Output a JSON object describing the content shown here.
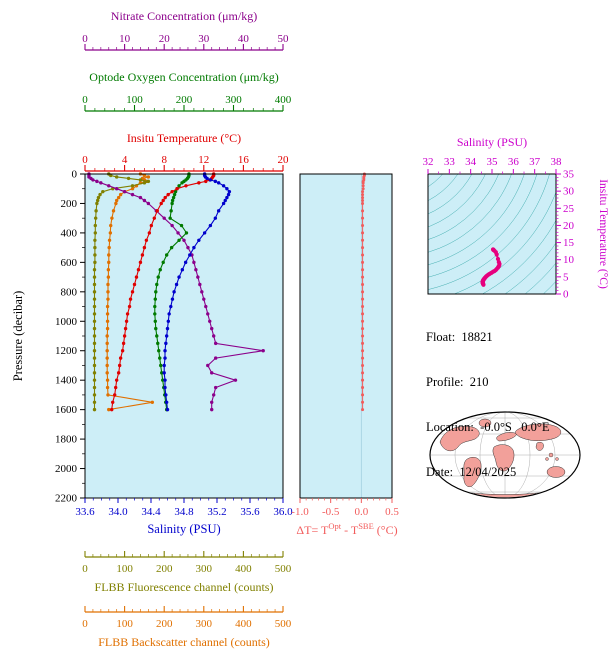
{
  "figure": {
    "bg": "#ffffff",
    "plot_bg": "#cdeef7"
  },
  "top_axes": [
    {
      "id": "nitrate",
      "title": "Nitrate Concentration (μm/kg)",
      "color": "#8b008b",
      "min": 0,
      "max": 50,
      "minor": 2,
      "minor_per_major": 5,
      "ticks": [
        "0",
        "10",
        "20",
        "30",
        "40",
        "50"
      ]
    },
    {
      "id": "oxygen",
      "title": "Optode Oxygen Concentration (μm/kg)",
      "color": "#007a00",
      "min": 0,
      "max": 400,
      "minor": 20,
      "minor_per_major": 5,
      "ticks": [
        "0",
        "100",
        "200",
        "300",
        "400"
      ]
    },
    {
      "id": "temperature",
      "title": "Insitu Temperature (°C)",
      "color": "#e00000",
      "min": 0,
      "max": 20,
      "minor": 1,
      "minor_per_major": 4,
      "ticks": [
        "0",
        "4",
        "8",
        "12",
        "16",
        "20"
      ]
    }
  ],
  "bottom_axes": [
    {
      "id": "fluorescence",
      "title": "FLBB Fluorescence channel (counts)",
      "color": "#808000",
      "min": 0,
      "max": 500,
      "minor": 20,
      "minor_per_major": 5,
      "ticks": [
        "0",
        "100",
        "200",
        "300",
        "400",
        "500"
      ]
    },
    {
      "id": "backscatter",
      "title": "FLBB Backscatter channel (counts)",
      "color": "#e07000",
      "min": 0,
      "max": 500,
      "minor": 20,
      "minor_per_major": 5,
      "ticks": [
        "0",
        "100",
        "200",
        "300",
        "400",
        "500"
      ]
    }
  ],
  "main_plot": {
    "ylabel": "Pressure (decibar)",
    "xlabel": "Salinity (PSU)",
    "x_color": "#0000cc",
    "y_ticks": [
      "0",
      "200",
      "400",
      "600",
      "800",
      "1000",
      "1200",
      "1400",
      "1600",
      "1800",
      "2000",
      "2200"
    ],
    "x_ticks": [
      "33.6",
      "34.0",
      "34.4",
      "34.8",
      "35.2",
      "35.6",
      "36.0"
    ]
  },
  "delta_plot": {
    "color": "#f25c5c",
    "ticks": [
      "-1.0",
      "-0.5",
      "0.0",
      "0.5"
    ],
    "label_parts": {
      "pre": "ΔT= T",
      "sup1": "Opt",
      "mid": " - T",
      "sup2": "SBE",
      "post": " (°C)"
    }
  },
  "ts_plot": {
    "title": "Salinity (PSU)",
    "right_label": "Insitu Temperature (°C)",
    "color": "#cc00cc",
    "point_color": "#e6007e",
    "contour_color": "#1f9e9e",
    "s_ticks": [
      "32",
      "33",
      "34",
      "35",
      "36",
      "37",
      "38"
    ],
    "t_ticks": [
      "0",
      "5",
      "10",
      "15",
      "20",
      "25",
      "30",
      "35"
    ]
  },
  "info": {
    "float": "Float:  18821",
    "profile": "Profile:  210",
    "location": "Location:  -0.0°S   0.0°E",
    "date": "Date:  12/04/2025"
  },
  "map": {
    "land_color": "#f2a09a",
    "outline": "#000000",
    "grid_color": "#999999"
  },
  "chart_data": {
    "type": "line",
    "description": "Argo float multi-parameter vertical profiles vs pressure, a delta-T panel, a T-S diagram and a location map",
    "pressure_range": [
      0,
      2200
    ],
    "pressure_dbar": [
      0,
      10,
      20,
      30,
      40,
      50,
      60,
      80,
      100,
      120,
      140,
      160,
      180,
      200,
      250,
      300,
      350,
      400,
      450,
      500,
      550,
      600,
      650,
      700,
      750,
      800,
      850,
      900,
      950,
      1000,
      1050,
      1100,
      1150,
      1200,
      1250,
      1300,
      1350,
      1400,
      1450,
      1500,
      1550,
      1600
    ],
    "axis_ranges": {
      "salinity": [
        33.6,
        36.0
      ],
      "temperature": [
        0,
        20
      ],
      "oxygen": [
        0,
        400
      ],
      "nitrate": [
        0,
        50
      ],
      "fluorescence": [
        0,
        500
      ],
      "backscatter": [
        0,
        500
      ],
      "delta_t": [
        -1.0,
        0.5
      ]
    },
    "series": [
      {
        "name": "Salinity (PSU)",
        "axis": "salinity",
        "color": "#0000cc",
        "values": [
          35.05,
          35.05,
          35.06,
          35.08,
          35.12,
          35.18,
          35.22,
          35.28,
          35.32,
          35.35,
          35.34,
          35.32,
          35.3,
          35.28,
          35.22,
          35.18,
          35.12,
          35.05,
          34.98,
          34.92,
          34.87,
          34.82,
          34.78,
          34.74,
          34.71,
          34.68,
          34.66,
          34.64,
          34.62,
          34.61,
          34.6,
          34.59,
          34.58,
          34.57,
          34.57,
          34.56,
          34.56,
          34.57,
          34.57,
          34.58,
          34.59,
          34.6
        ]
      },
      {
        "name": "Insitu Temperature (°C)",
        "axis": "temperature",
        "color": "#e00000",
        "values": [
          13.0,
          13.0,
          12.9,
          12.8,
          12.6,
          12.2,
          11.5,
          10.2,
          9.3,
          8.8,
          8.4,
          8.1,
          7.9,
          7.7,
          7.3,
          7.0,
          6.7,
          6.5,
          6.2,
          6.0,
          5.8,
          5.6,
          5.4,
          5.2,
          5.0,
          4.8,
          4.6,
          4.5,
          4.3,
          4.2,
          4.1,
          4.0,
          3.9,
          3.8,
          3.6,
          3.5,
          3.4,
          3.2,
          3.1,
          3.0,
          2.8,
          2.7
        ]
      },
      {
        "name": "Optode Oxygen Concentration (μm/kg)",
        "axis": "oxygen",
        "color": "#007a00",
        "values": [
          210,
          210,
          209,
          207,
          204,
          200,
          196,
          190,
          186,
          183,
          181,
          179,
          177,
          176,
          174,
          172,
          195,
          205,
          190,
          175,
          165,
          158,
          152,
          148,
          145,
          143,
          142,
          141,
          141,
          142,
          143,
          145,
          147,
          149,
          151,
          153,
          155,
          157,
          159,
          161,
          163,
          165
        ]
      },
      {
        "name": "Nitrate Concentration (μm/kg)",
        "axis": "nitrate",
        "color": "#8b008b",
        "values": [
          1,
          1,
          1,
          1.5,
          2,
          3,
          4,
          6,
          8,
          10,
          12,
          14,
          15,
          16,
          18,
          20,
          22,
          23.5,
          25,
          26,
          27,
          27.5,
          28,
          28.5,
          29,
          29.5,
          30,
          30.5,
          31,
          31.5,
          32,
          32.5,
          33,
          45,
          33,
          31,
          32,
          38,
          33,
          32.5,
          32,
          32
        ]
      },
      {
        "name": "FLBB Fluorescence channel (counts)",
        "axis": "fluorescence",
        "color": "#808000",
        "values": [
          60,
          65,
          80,
          110,
          140,
          160,
          150,
          120,
          70,
          45,
          38,
          34,
          32,
          30,
          28,
          27,
          26,
          26,
          25,
          25,
          25,
          25,
          24,
          24,
          24,
          24,
          24,
          24,
          24,
          24,
          24,
          24,
          24,
          24,
          24,
          24,
          24,
          24,
          24,
          24,
          24,
          24
        ]
      },
      {
        "name": "FLBB Backscatter channel (counts)",
        "axis": "backscatter",
        "color": "#e07000",
        "values": [
          140,
          150,
          160,
          145,
          150,
          155,
          140,
          130,
          120,
          100,
          90,
          85,
          80,
          78,
          72,
          68,
          65,
          64,
          62,
          61,
          60,
          60,
          59,
          59,
          58,
          58,
          58,
          57,
          57,
          57,
          57,
          56,
          56,
          56,
          56,
          56,
          56,
          57,
          57,
          58,
          170,
          60
        ]
      },
      {
        "name": "ΔT = Tᴼᵖᵗ - Tˢᵇᵉ (°C)",
        "axis": "delta_t",
        "color": "#f25c5c",
        "values": [
          0.05,
          0.05,
          0.04,
          0.04,
          0.04,
          0.03,
          0.03,
          0.03,
          0.03,
          0.02,
          0.02,
          0.02,
          0.02,
          0.02,
          0.02,
          0.02,
          0.02,
          0.02,
          0.02,
          0.02,
          0.02,
          0.02,
          0.02,
          0.02,
          0.02,
          0.02,
          0.02,
          0.02,
          0.02,
          0.02,
          0.02,
          0.02,
          0.02,
          0.02,
          0.02,
          0.02,
          0.02,
          0.02,
          0.02,
          0.02,
          0.02,
          0.02
        ]
      }
    ],
    "ts_diagram": {
      "s_range": [
        32,
        38
      ],
      "t_range": [
        0,
        35
      ],
      "points_from": "salinity+temperature series pairs"
    }
  }
}
